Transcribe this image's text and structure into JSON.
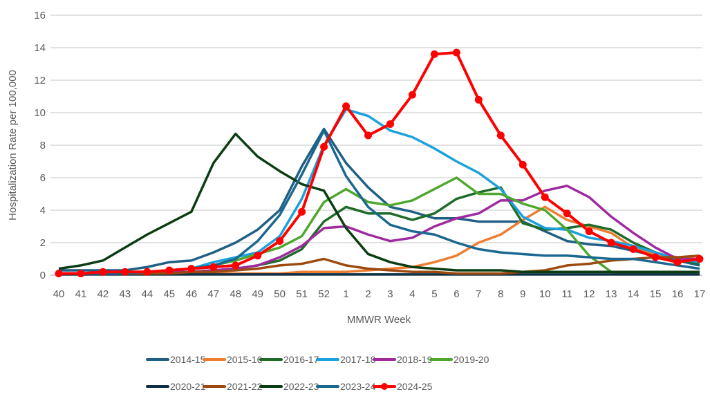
{
  "chart_data": {
    "type": "line",
    "title": "",
    "xlabel": "MMWR Week",
    "ylabel": "Hospitalization Rate per 100,000",
    "ylim": [
      0,
      16
    ],
    "yticks": [
      0,
      2,
      4,
      6,
      8,
      10,
      12,
      14,
      16
    ],
    "grid": true,
    "legend_placement": "bottom",
    "categories": [
      "40",
      "41",
      "42",
      "43",
      "44",
      "45",
      "46",
      "47",
      "48",
      "49",
      "50",
      "51",
      "52",
      "1",
      "2",
      "3",
      "4",
      "5",
      "6",
      "7",
      "8",
      "9",
      "10",
      "11",
      "12",
      "13",
      "14",
      "15",
      "16",
      "17"
    ],
    "series": [
      {
        "name": "2014-15",
        "color": "#1f5f84",
        "marker": false,
        "values": [
          0.3,
          0.3,
          0.3,
          0.3,
          0.5,
          0.8,
          0.9,
          1.4,
          2.0,
          2.8,
          4.0,
          6.7,
          9.0,
          6.9,
          5.4,
          4.2,
          3.9,
          3.5,
          3.5,
          3.3,
          3.3,
          3.3,
          2.7,
          2.1,
          1.9,
          1.8,
          1.5,
          1.2,
          0.9,
          0.6
        ]
      },
      {
        "name": "2015-16",
        "color": "#ed7d31",
        "marker": false,
        "values": [
          0.1,
          0.1,
          0.1,
          0.1,
          0.1,
          0.1,
          0.1,
          0.1,
          0.1,
          0.1,
          0.1,
          0.2,
          0.2,
          0.2,
          0.3,
          0.4,
          0.5,
          0.8,
          1.2,
          2.0,
          2.5,
          3.4,
          4.2,
          3.4,
          3.0,
          2.6,
          1.7,
          1.3,
          1.1,
          1.0
        ]
      },
      {
        "name": "2016-17",
        "color": "#1e6b2a",
        "marker": false,
        "values": [
          0.1,
          0.1,
          0.1,
          0.1,
          0.1,
          0.2,
          0.2,
          0.3,
          0.4,
          0.6,
          0.9,
          1.6,
          3.3,
          4.2,
          3.8,
          3.8,
          3.4,
          3.8,
          4.7,
          5.1,
          5.4,
          3.2,
          2.8,
          2.9,
          3.1,
          2.8,
          2.0,
          1.4,
          1.0,
          0.7
        ]
      },
      {
        "name": "2017-18",
        "color": "#1ba1dc",
        "marker": false,
        "values": [
          0.1,
          0.1,
          0.1,
          0.1,
          0.2,
          0.3,
          0.4,
          0.8,
          1.1,
          1.4,
          2.4,
          4.7,
          8.0,
          10.2,
          9.8,
          8.9,
          8.5,
          7.8,
          7.0,
          6.3,
          5.3,
          3.6,
          2.9,
          2.8,
          2.3,
          2.1,
          1.8,
          1.4,
          1.0,
          0.8
        ]
      },
      {
        "name": "2018-19",
        "color": "#9e2a9e",
        "marker": false,
        "values": [
          0.1,
          0.1,
          0.1,
          0.1,
          0.1,
          0.2,
          0.2,
          0.3,
          0.4,
          0.6,
          1.1,
          1.8,
          2.9,
          3.0,
          2.5,
          2.1,
          2.3,
          3.0,
          3.5,
          3.8,
          4.6,
          4.6,
          5.2,
          5.5,
          4.8,
          3.6,
          2.6,
          1.7,
          1.0,
          1.0
        ]
      },
      {
        "name": "2019-20",
        "color": "#4ea72e",
        "marker": false,
        "values": [
          0.1,
          0.1,
          0.1,
          0.1,
          0.2,
          0.3,
          0.4,
          0.6,
          0.9,
          1.3,
          1.7,
          2.4,
          4.5,
          5.3,
          4.5,
          4.3,
          4.6,
          5.3,
          6.0,
          5.0,
          5.0,
          4.4,
          4.0,
          2.8,
          1.2,
          0.2,
          0.1,
          0.1,
          0.1,
          0.1
        ]
      },
      {
        "name": "2020-21",
        "color": "#0e2f44",
        "marker": false,
        "values": [
          0.05,
          0.05,
          0.05,
          0.05,
          0.05,
          0.05,
          0.05,
          0.05,
          0.05,
          0.05,
          0.05,
          0.05,
          0.05,
          0.05,
          0.05,
          0.05,
          0.05,
          0.05,
          0.05,
          0.05,
          0.05,
          0.05,
          0.05,
          0.05,
          0.05,
          0.05,
          0.05,
          0.05,
          0.05,
          0.05
        ]
      },
      {
        "name": "2021-22",
        "color": "#9c4a0f",
        "marker": false,
        "values": [
          0.1,
          0.1,
          0.1,
          0.1,
          0.1,
          0.1,
          0.2,
          0.2,
          0.3,
          0.4,
          0.6,
          0.7,
          1.0,
          0.6,
          0.4,
          0.3,
          0.2,
          0.2,
          0.1,
          0.1,
          0.1,
          0.2,
          0.3,
          0.6,
          0.7,
          0.9,
          1.0,
          1.1,
          1.1,
          1.2
        ]
      },
      {
        "name": "2022-23",
        "color": "#0b3d12",
        "marker": false,
        "values": [
          0.4,
          0.6,
          0.9,
          1.7,
          2.5,
          3.2,
          3.9,
          6.9,
          8.7,
          7.3,
          6.4,
          5.6,
          5.2,
          2.9,
          1.3,
          0.8,
          0.5,
          0.4,
          0.3,
          0.3,
          0.3,
          0.2,
          0.2,
          0.2,
          0.2,
          0.2,
          0.2,
          0.2,
          0.2,
          0.2
        ]
      },
      {
        "name": "2023-24",
        "color": "#1a6890",
        "marker": false,
        "values": [
          0.1,
          0.1,
          0.1,
          0.1,
          0.2,
          0.3,
          0.4,
          0.6,
          1.0,
          2.1,
          3.7,
          6.2,
          8.9,
          6.1,
          4.2,
          3.1,
          2.7,
          2.5,
          2.0,
          1.6,
          1.4,
          1.3,
          1.2,
          1.2,
          1.1,
          1.0,
          1.0,
          0.8,
          0.6,
          0.4
        ]
      },
      {
        "name": "2024-25",
        "color": "#ff0000",
        "marker": true,
        "values": [
          0.1,
          0.1,
          0.2,
          0.2,
          0.2,
          0.3,
          0.4,
          0.5,
          0.6,
          1.2,
          2.1,
          3.9,
          7.9,
          10.4,
          8.6,
          9.3,
          11.1,
          13.6,
          13.7,
          10.8,
          8.6,
          6.8,
          4.8,
          3.8,
          2.7,
          2.0,
          1.6,
          1.1,
          0.8,
          1.0
        ]
      }
    ]
  }
}
